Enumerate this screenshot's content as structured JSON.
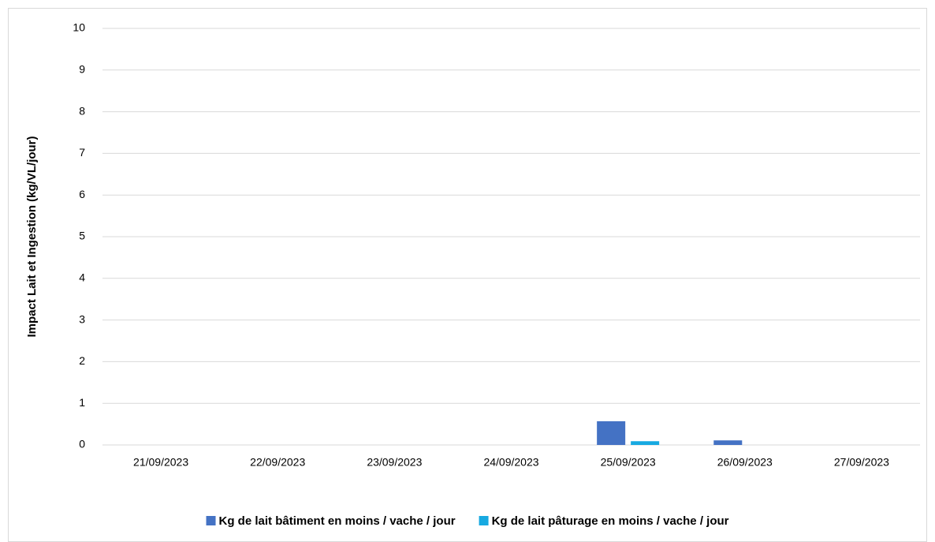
{
  "chart_data": {
    "type": "bar",
    "categories": [
      "21/09/2023",
      "22/09/2023",
      "23/09/2023",
      "24/09/2023",
      "25/09/2023",
      "26/09/2023",
      "27/09/2023"
    ],
    "series": [
      {
        "name": "Kg de lait bâtiment en moins / vache / jour",
        "color": "#4472c4",
        "values": [
          0,
          0,
          0,
          0,
          0.57,
          0.11,
          0
        ]
      },
      {
        "name": "Kg de lait pâturage en moins / vache / jour",
        "color": "#17a9e1",
        "values": [
          0,
          0,
          0,
          0,
          0.09,
          0,
          0
        ]
      }
    ],
    "y_label": "Impact Lait et Ingestion (kg/VL/jour)",
    "ylim": [
      0,
      10
    ],
    "yticks": [
      0,
      1,
      2,
      3,
      4,
      5,
      6,
      7,
      8,
      9,
      10
    ],
    "grid": true,
    "legend": "bottom"
  }
}
